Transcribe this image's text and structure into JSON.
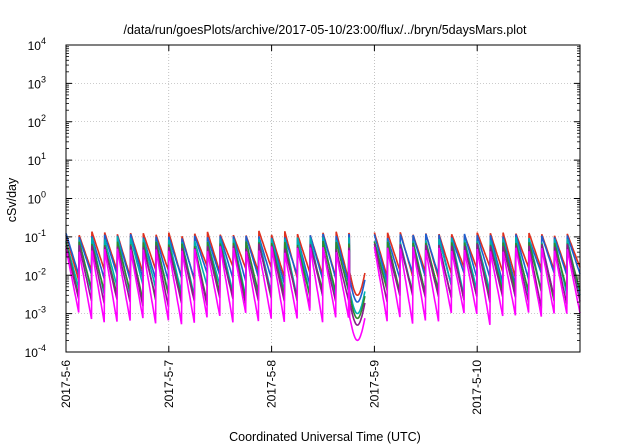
{
  "chart_data": {
    "type": "line",
    "title": "/data/run/goesPlots/archive/2017-05-10/23:00/flux/../bryn/5daysMars.plot",
    "xlabel": "Coordinated Universal Time (UTC)",
    "ylabel": "cSv/day",
    "x_ticks": [
      "2017-5-6",
      "2017-5-7",
      "2017-5-8",
      "2017-5-9",
      "2017-5-10"
    ],
    "xlim": [
      "2017-05-06 00:00",
      "2017-05-11 00:00"
    ],
    "y_scale": "log",
    "ylim": [
      0.0001,
      10000
    ],
    "y_ticks": [
      {
        "base": "10",
        "exp": "-4"
      },
      {
        "base": "10",
        "exp": "-3"
      },
      {
        "base": "10",
        "exp": "-2"
      },
      {
        "base": "10",
        "exp": "-1"
      },
      {
        "base": "10",
        "exp": "0"
      },
      {
        "base": "10",
        "exp": "1"
      },
      {
        "base": "10",
        "exp": "2"
      },
      {
        "base": "10",
        "exp": "3"
      },
      {
        "base": "10",
        "exp": "4"
      }
    ],
    "grid": true,
    "gap": {
      "start": "2017-05-08 21:50",
      "end": "2017-05-09 00:00"
    },
    "pattern": {
      "description": "periodic sawtooth decay, roughly 8 peaks per day",
      "peak_value": 0.12,
      "trough_values": [
        0.0025,
        0.0012
      ]
    },
    "series": [
      {
        "color": "#e0301e",
        "peak": 0.13,
        "trough": 0.012
      },
      {
        "color": "#1f5fcf",
        "peak": 0.11,
        "trough": 0.008
      },
      {
        "color": "#00b0b0",
        "peak": 0.09,
        "trough": 0.004
      },
      {
        "color": "#2e8b2e",
        "peak": 0.07,
        "trough": 0.003
      },
      {
        "color": "#8b1a8b",
        "peak": 0.06,
        "trough": 0.002
      },
      {
        "color": "#ff00ff",
        "peak": 0.05,
        "trough": 0.0008
      }
    ]
  }
}
